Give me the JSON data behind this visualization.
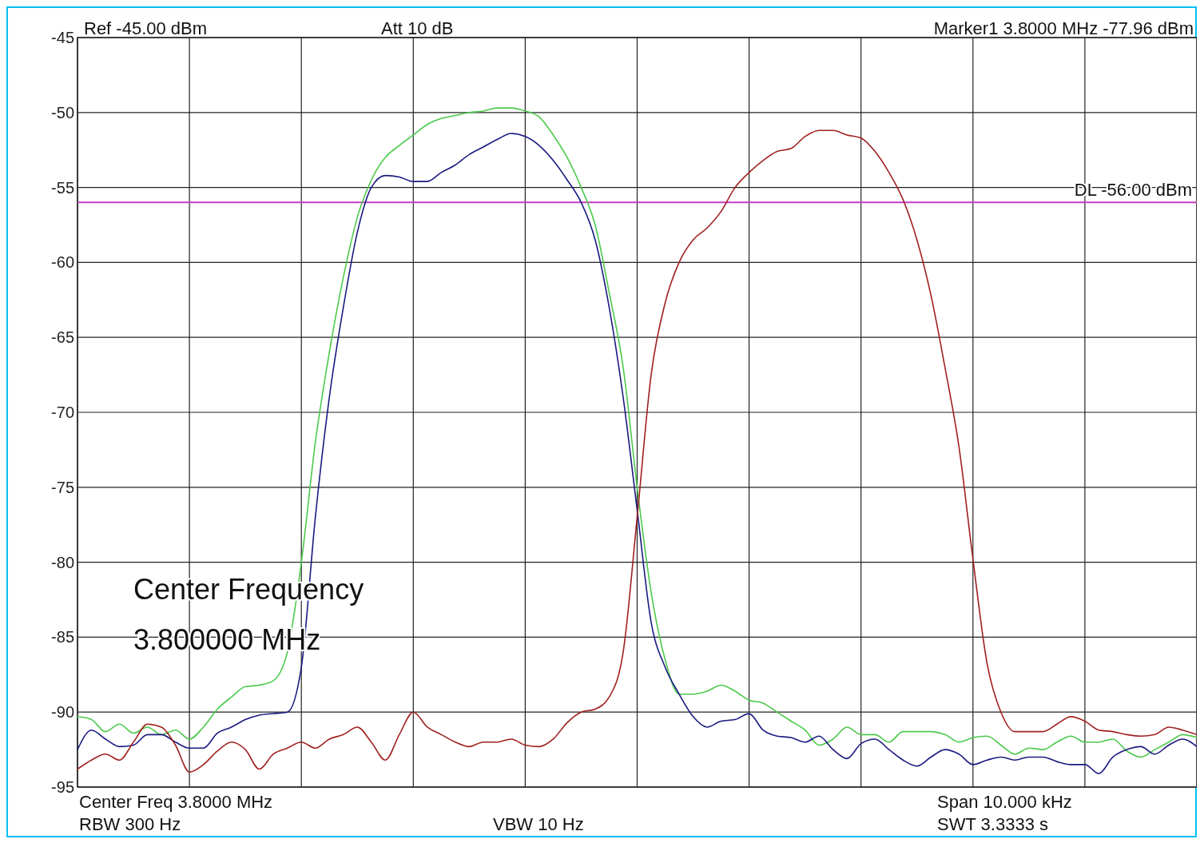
{
  "chart_data": {
    "type": "line",
    "categories": [
      null,
      null,
      null,
      null,
      null,
      null,
      null,
      null,
      null,
      null,
      null,
      null,
      null,
      null,
      null,
      null,
      null,
      null,
      null,
      null,
      null,
      null,
      null,
      null,
      null,
      null,
      null,
      null,
      null,
      null,
      null,
      null,
      null,
      null,
      null,
      null,
      null,
      null,
      null,
      null,
      null,
      null,
      null,
      null,
      null,
      null,
      null,
      null,
      null,
      null,
      null,
      null,
      null,
      null,
      null,
      null,
      null,
      null,
      null,
      null,
      null,
      null,
      null,
      null,
      null,
      null,
      null,
      null,
      null,
      null,
      null,
      null,
      null,
      null,
      null,
      null,
      null,
      null,
      null,
      null,
      null
    ],
    "series": [
      {
        "color": "#4cc94c",
        "values": [
          -90.3,
          -90.5,
          -91.3,
          -90.8,
          -91.4,
          -91.0,
          -91.5,
          -91.2,
          -91.8,
          -91.0,
          -89.8,
          -89.0,
          -88.3,
          -88.2,
          -87.9,
          -86,
          -80,
          -72,
          -66,
          -61,
          -57,
          -54.5,
          -53.0,
          -52.2,
          -51.5,
          -50.8,
          -50.4,
          -50.2,
          -50.0,
          -49.9,
          -49.7,
          -49.7,
          -49.9,
          -50.3,
          -51.5,
          -53.0,
          -55.0,
          -57.5,
          -62,
          -67,
          -75,
          -82,
          -86.5,
          -88.8,
          -88.8,
          -88.6,
          -88.2,
          -88.6,
          -89.2,
          -89.4,
          -90.0,
          -90.6,
          -91.2,
          -92.2,
          -91.8,
          -91.0,
          -91.5,
          -91.5,
          -92.0,
          -91.3,
          -91.3,
          -91.3,
          -91.5,
          -92.0,
          -91.7,
          -91.6,
          -92.2,
          -92.8,
          -92.4,
          -92.5,
          -92.0,
          -91.6,
          -92.0,
          -92.0,
          -91.8,
          -92.6,
          -93.0,
          -92.5,
          -92.0,
          -91.5,
          -91.7
        ]
      },
      {
        "color": "#1a1a80",
        "values": [
          -92.5,
          -91.2,
          -91.8,
          -92.3,
          -92.2,
          -91.5,
          -91.5,
          -92.0,
          -92.4,
          -92.4,
          -91.4,
          -91.0,
          -90.5,
          -90.2,
          -90.1,
          -90.0,
          -87,
          -77,
          -69,
          -63,
          -58,
          -55.0,
          -54.2,
          -54.3,
          -54.6,
          -54.6,
          -54.0,
          -53.5,
          -52.8,
          -52.3,
          -51.8,
          -51.4,
          -51.6,
          -52.2,
          -53.2,
          -54.5,
          -56,
          -58.5,
          -63,
          -69,
          -76.5,
          -84,
          -87,
          -88.8,
          -90.3,
          -91,
          -90.6,
          -90.5,
          -90.1,
          -91.2,
          -91.6,
          -91.7,
          -92.0,
          -91.6,
          -92.5,
          -93.1,
          -92.1,
          -91.8,
          -92.5,
          -93.2,
          -93.6,
          -93.0,
          -92.5,
          -92.8,
          -93.5,
          -93.2,
          -93.0,
          -93.2,
          -93.0,
          -93.0,
          -93.3,
          -93.5,
          -93.5,
          -94.1,
          -93.0,
          -92.5,
          -92.3,
          -92.8,
          -92.2,
          -91.8,
          -92.3
        ]
      },
      {
        "color": "#a02020",
        "values": [
          -93.8,
          -93.2,
          -92.8,
          -93.2,
          -92.0,
          -90.8,
          -91.0,
          -92.2,
          -94.0,
          -93.5,
          -92.6,
          -92.0,
          -92.5,
          -93.8,
          -92.8,
          -92.4,
          -92.0,
          -92.4,
          -91.8,
          -91.5,
          -91.0,
          -92.0,
          -93.2,
          -91.5,
          -90.0,
          -91.0,
          -91.5,
          -92.0,
          -92.3,
          -92.0,
          -92.0,
          -91.8,
          -92.2,
          -92.3,
          -91.8,
          -90.7,
          -90.0,
          -89.8,
          -89.0,
          -86,
          -77,
          -67.5,
          -62.7,
          -60,
          -58.5,
          -57.7,
          -56.6,
          -55,
          -54,
          -53.2,
          -52.6,
          -52.4,
          -51.6,
          -51.2,
          -51.2,
          -51.5,
          -51.7,
          -52.6,
          -54,
          -55.8,
          -58.5,
          -62.2,
          -67,
          -72.3,
          -79.8,
          -86.7,
          -90,
          -91.3,
          -91.3,
          -91.3,
          -90.8,
          -90.3,
          -90.6,
          -91.2,
          -91.3,
          -91.5,
          -91.6,
          -91.5,
          -91.0,
          -91.2,
          -91.5
        ]
      }
    ],
    "ylim": [
      -95,
      -45
    ],
    "yticks": [
      -95,
      -90,
      -85,
      -80,
      -75,
      -70,
      -65,
      -60,
      -55,
      -50,
      -45
    ],
    "grid": true,
    "tick_labels": "y",
    "ref_lines": [
      {
        "axis": "y",
        "value": -56,
        "label": "DL -56.00 dBm",
        "color": "#c040c0"
      }
    ],
    "annotations": [
      "Ref -45.00 dBm",
      "Att 10 dB",
      "Marker1 3.8000 MHz -77.96 dBm",
      "Center Frequency",
      "3.800000 MHz",
      "Center Freq 3.8000 MHz",
      "RBW 300 Hz",
      "VBW 10 Hz",
      "Span 10.000 kHz",
      "SWT 3.3333 s"
    ]
  }
}
